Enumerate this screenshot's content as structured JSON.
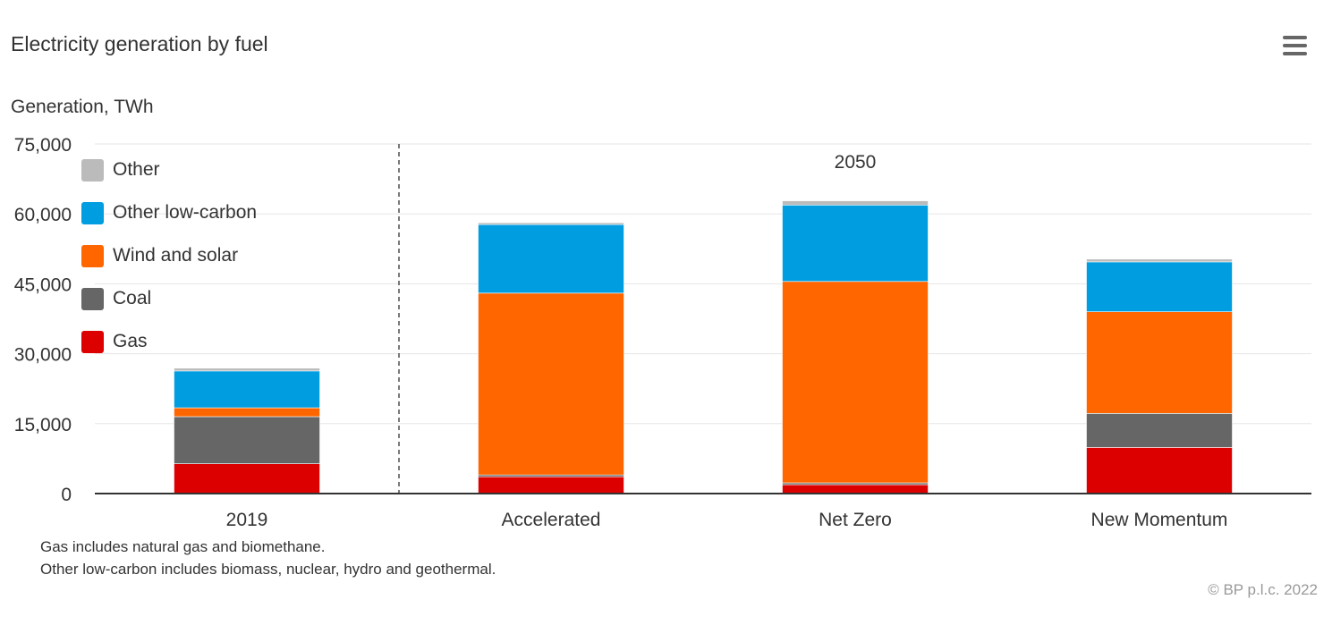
{
  "title": "Electricity generation by fuel",
  "y_axis_title": "Generation, TWh",
  "group_label": "2050",
  "footnotes": [
    "Gas includes natural gas and biomethane.",
    "Other low-carbon includes biomass, nuclear, hydro and geothermal."
  ],
  "credit": "© BP p.l.c. 2022",
  "menu_icon": "hamburger-menu-icon",
  "chart_data": {
    "type": "bar",
    "stacked": true,
    "title": "Electricity generation by fuel",
    "ylabel": "Generation, TWh",
    "xlabel": "",
    "ylim": [
      0,
      75000
    ],
    "yticks": [
      0,
      15000,
      30000,
      45000,
      60000,
      75000
    ],
    "ytick_labels": [
      "0",
      "15,000",
      "30,000",
      "45,000",
      "60,000",
      "75,000"
    ],
    "categories": [
      "2019",
      "Accelerated",
      "Net Zero",
      "New Momentum"
    ],
    "grid": true,
    "legend_position": "top-left",
    "series": [
      {
        "name": "Gas",
        "color": "#dd0000",
        "values": [
          6400,
          3600,
          1900,
          9900
        ]
      },
      {
        "name": "Coal",
        "color": "#666666",
        "values": [
          10100,
          400,
          400,
          7300
        ]
      },
      {
        "name": "Wind and solar",
        "color": "#ff6600",
        "values": [
          1900,
          39000,
          43200,
          21800
        ]
      },
      {
        "name": "Other low-carbon",
        "color": "#009de0",
        "values": [
          7900,
          14700,
          16400,
          10700
        ]
      },
      {
        "name": "Other",
        "color": "#bbbbbb",
        "values": [
          600,
          400,
          900,
          600
        ]
      }
    ]
  }
}
